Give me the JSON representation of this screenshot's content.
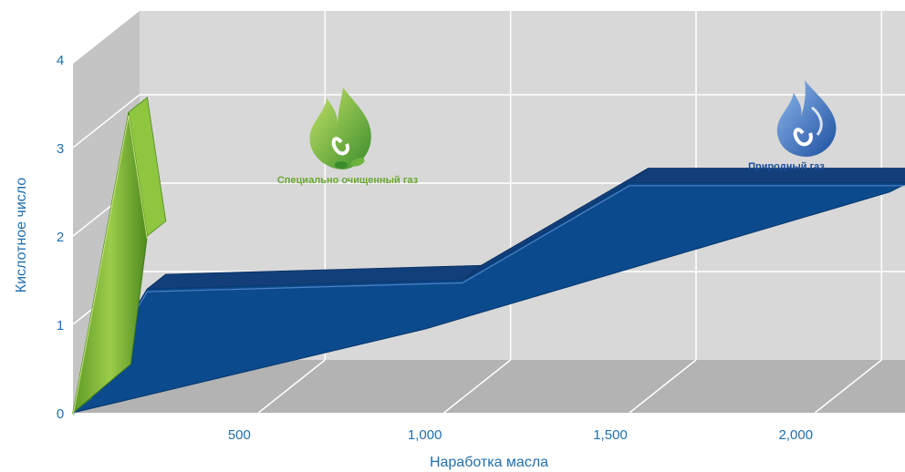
{
  "chart_data": {
    "type": "area",
    "title": "",
    "xlabel": "Наработка масла",
    "ylabel": "Кислотное число",
    "xlim": [
      0,
      2250
    ],
    "ylim": [
      0,
      4
    ],
    "x_ticks": [
      500,
      1000,
      1500,
      2000
    ],
    "x_tick_labels": [
      "500",
      "1,000",
      "1,500",
      "2,000"
    ],
    "y_ticks": [
      0,
      1,
      2,
      3,
      4
    ],
    "y_tick_labels": [
      "0",
      "1",
      "2",
      "3",
      "4"
    ],
    "grid": true,
    "three_d": true,
    "series": [
      {
        "name": "Природный газ",
        "color": "#0b4a8c",
        "icon": "blue-flame-icon",
        "x": [
          0,
          200,
          1050,
          1500,
          2250
        ],
        "y": [
          0,
          1.4,
          1.5,
          2.6,
          2.6
        ]
      },
      {
        "name": "Специально очищенный газ",
        "color": "#6fa830",
        "icon": "green-leaf-flame-icon",
        "x": [
          0,
          150,
          200
        ],
        "y": [
          0,
          3.4,
          2
        ]
      }
    ]
  }
}
